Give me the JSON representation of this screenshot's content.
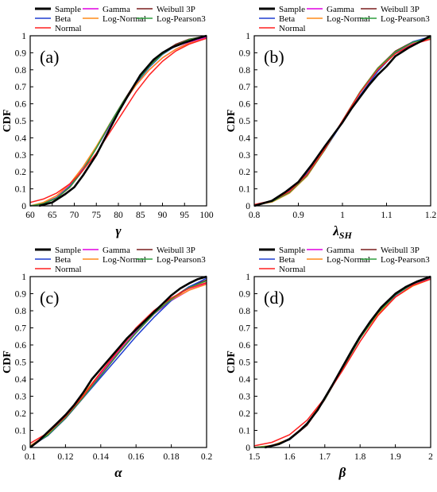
{
  "chart_data": [
    {
      "id": "a",
      "type": "line",
      "panel_label": "(a)",
      "xlabel": "γ",
      "xlabel_sub": "",
      "ylabel": "CDF",
      "xlim": [
        60,
        100
      ],
      "ylim": [
        0,
        1
      ],
      "xticks": [
        "60",
        "65",
        "70",
        "75",
        "80",
        "85",
        "90",
        "95",
        "100"
      ],
      "yticks": [
        "0",
        "0.1",
        "0.2",
        "0.3",
        "0.4",
        "0.5",
        "0.6",
        "0.7",
        "0.8",
        "0.9",
        "1"
      ],
      "grid": false,
      "legend_position": "top",
      "series": [
        {
          "name": "Sample",
          "color": "#000000",
          "x": [
            62,
            65,
            68,
            70,
            72,
            75,
            78,
            80,
            82,
            85,
            88,
            90,
            92,
            95,
            98,
            100
          ],
          "y": [
            0,
            0.02,
            0.07,
            0.11,
            0.18,
            0.3,
            0.45,
            0.55,
            0.64,
            0.77,
            0.86,
            0.9,
            0.93,
            0.96,
            0.985,
            1
          ]
        },
        {
          "name": "Gamma",
          "color": "#e000e0",
          "x": [
            60,
            63,
            66,
            69,
            72,
            75,
            78,
            81,
            84,
            87,
            90,
            93,
            96,
            100
          ],
          "y": [
            0,
            0.015,
            0.05,
            0.12,
            0.22,
            0.34,
            0.47,
            0.6,
            0.71,
            0.8,
            0.87,
            0.92,
            0.96,
            0.99
          ]
        },
        {
          "name": "Weibull 3P",
          "color": "#7a1f1f",
          "x": [
            60,
            63,
            66,
            69,
            72,
            75,
            78,
            81,
            84,
            87,
            90,
            93,
            96,
            100
          ],
          "y": [
            0,
            0.012,
            0.045,
            0.11,
            0.21,
            0.34,
            0.48,
            0.61,
            0.73,
            0.83,
            0.9,
            0.95,
            0.98,
            1
          ]
        },
        {
          "name": "Beta",
          "color": "#1f3fd0",
          "x": [
            60,
            63,
            66,
            69,
            72,
            75,
            78,
            81,
            84,
            87,
            90,
            93,
            96,
            100
          ],
          "y": [
            0,
            0.014,
            0.048,
            0.115,
            0.215,
            0.34,
            0.475,
            0.605,
            0.72,
            0.815,
            0.89,
            0.94,
            0.975,
            1
          ]
        },
        {
          "name": "Log-Normal",
          "color": "#ff8c1a",
          "x": [
            60,
            63,
            66,
            69,
            72,
            75,
            78,
            81,
            84,
            87,
            90,
            93,
            96,
            100
          ],
          "y": [
            0,
            0.02,
            0.06,
            0.13,
            0.23,
            0.35,
            0.48,
            0.6,
            0.71,
            0.8,
            0.87,
            0.92,
            0.955,
            0.985
          ]
        },
        {
          "name": "Log-Pearson3",
          "color": "#2e9e3e",
          "x": [
            60,
            63,
            66,
            69,
            72,
            75,
            78,
            81,
            84,
            87,
            90,
            93,
            96,
            100
          ],
          "y": [
            0,
            0.013,
            0.046,
            0.112,
            0.212,
            0.34,
            0.478,
            0.608,
            0.725,
            0.82,
            0.893,
            0.943,
            0.977,
            1
          ]
        },
        {
          "name": "Normal",
          "color": "#ff2020",
          "x": [
            60,
            63,
            66,
            69,
            72,
            75,
            78,
            81,
            84,
            87,
            90,
            93,
            96,
            100
          ],
          "y": [
            0.02,
            0.04,
            0.075,
            0.13,
            0.21,
            0.31,
            0.43,
            0.55,
            0.67,
            0.77,
            0.85,
            0.91,
            0.95,
            0.985
          ]
        }
      ]
    },
    {
      "id": "b",
      "type": "line",
      "panel_label": "(b)",
      "xlabel": "λ",
      "xlabel_sub": "SH",
      "ylabel": "CDF",
      "xlim": [
        0.8,
        1.2
      ],
      "ylim": [
        0,
        1
      ],
      "xticks": [
        "0.8",
        "0.9",
        "1",
        "1.1",
        "1.2"
      ],
      "yticks": [
        "0",
        "0.1",
        "0.2",
        "0.3",
        "0.4",
        "0.5",
        "0.6",
        "0.7",
        "0.8",
        "0.9",
        "1"
      ],
      "grid": false,
      "legend_position": "top",
      "series": [
        {
          "name": "Sample",
          "color": "#000000",
          "x": [
            0.8,
            0.84,
            0.87,
            0.9,
            0.93,
            0.96,
            0.98,
            1,
            1.02,
            1.04,
            1.06,
            1.08,
            1.1,
            1.12,
            1.15,
            1.18,
            1.2
          ],
          "y": [
            0,
            0.03,
            0.08,
            0.14,
            0.24,
            0.35,
            0.42,
            0.49,
            0.57,
            0.64,
            0.71,
            0.77,
            0.82,
            0.88,
            0.93,
            0.97,
            1
          ]
        },
        {
          "name": "Gamma",
          "color": "#e000e0",
          "x": [
            0.8,
            0.84,
            0.88,
            0.92,
            0.96,
            1,
            1.04,
            1.08,
            1.12,
            1.16,
            1.2
          ],
          "y": [
            0.005,
            0.025,
            0.08,
            0.18,
            0.33,
            0.5,
            0.67,
            0.8,
            0.9,
            0.955,
            0.985
          ]
        },
        {
          "name": "Weibull 3P",
          "color": "#7a1f1f",
          "x": [
            0.8,
            0.84,
            0.88,
            0.92,
            0.96,
            1,
            1.04,
            1.08,
            1.12,
            1.16,
            1.2
          ],
          "y": [
            0.005,
            0.024,
            0.078,
            0.178,
            0.33,
            0.5,
            0.67,
            0.81,
            0.91,
            0.965,
            0.99
          ]
        },
        {
          "name": "Beta",
          "color": "#1f3fd0",
          "x": [
            0.8,
            0.84,
            0.88,
            0.92,
            0.96,
            1,
            1.04,
            1.08,
            1.12,
            1.16,
            1.2
          ],
          "y": [
            0.005,
            0.03,
            0.09,
            0.19,
            0.33,
            0.49,
            0.65,
            0.79,
            0.9,
            0.965,
            0.995
          ]
        },
        {
          "name": "Log-Normal",
          "color": "#ff8c1a",
          "x": [
            0.8,
            0.84,
            0.88,
            0.92,
            0.96,
            1,
            1.04,
            1.08,
            1.12,
            1.16,
            1.2
          ],
          "y": [
            0.004,
            0.022,
            0.075,
            0.175,
            0.33,
            0.5,
            0.67,
            0.81,
            0.905,
            0.96,
            0.985
          ]
        },
        {
          "name": "Log-Pearson3",
          "color": "#2e9e3e",
          "x": [
            0.8,
            0.84,
            0.88,
            0.92,
            0.96,
            1,
            1.04,
            1.08,
            1.12,
            1.16,
            1.2
          ],
          "y": [
            0.005,
            0.025,
            0.079,
            0.179,
            0.331,
            0.5,
            0.669,
            0.808,
            0.905,
            0.962,
            0.988
          ]
        },
        {
          "name": "Normal",
          "color": "#ff2020",
          "x": [
            0.8,
            0.84,
            0.88,
            0.92,
            0.96,
            1,
            1.04,
            1.08,
            1.12,
            1.16,
            1.2
          ],
          "y": [
            0.008,
            0.03,
            0.085,
            0.185,
            0.335,
            0.5,
            0.665,
            0.8,
            0.895,
            0.95,
            0.98
          ]
        }
      ]
    },
    {
      "id": "c",
      "type": "line",
      "panel_label": "(c)",
      "xlabel": "α",
      "xlabel_sub": "",
      "ylabel": "CDF",
      "xlim": [
        0.1,
        0.2
      ],
      "ylim": [
        0,
        1
      ],
      "xticks": [
        "0.1",
        "0.12",
        "0.14",
        "0.16",
        "0.18",
        "0.2"
      ],
      "yticks": [
        "0",
        "0.1",
        "0.2",
        "0.3",
        "0.4",
        "0.5",
        "0.6",
        "0.7",
        "0.8",
        "0.9",
        "1"
      ],
      "grid": false,
      "legend_position": "top",
      "series": [
        {
          "name": "Sample",
          "color": "#000000",
          "x": [
            0.1,
            0.105,
            0.11,
            0.115,
            0.12,
            0.125,
            0.13,
            0.135,
            0.14,
            0.145,
            0.15,
            0.155,
            0.16,
            0.165,
            0.17,
            0.175,
            0.18,
            0.185,
            0.19,
            0.195,
            0.2
          ],
          "y": [
            0,
            0.04,
            0.09,
            0.14,
            0.19,
            0.25,
            0.32,
            0.4,
            0.46,
            0.52,
            0.58,
            0.64,
            0.69,
            0.74,
            0.79,
            0.84,
            0.89,
            0.93,
            0.96,
            0.985,
            1
          ]
        },
        {
          "name": "Gamma",
          "color": "#e000e0",
          "x": [
            0.1,
            0.11,
            0.12,
            0.13,
            0.14,
            0.15,
            0.16,
            0.17,
            0.18,
            0.19,
            0.2
          ],
          "y": [
            0.01,
            0.08,
            0.18,
            0.3,
            0.43,
            0.56,
            0.68,
            0.78,
            0.86,
            0.92,
            0.96
          ]
        },
        {
          "name": "Weibull 3P",
          "color": "#7a1f1f",
          "x": [
            0.1,
            0.11,
            0.12,
            0.13,
            0.14,
            0.15,
            0.16,
            0.17,
            0.18,
            0.19,
            0.2
          ],
          "y": [
            0.005,
            0.07,
            0.17,
            0.29,
            0.42,
            0.55,
            0.67,
            0.78,
            0.87,
            0.94,
            0.98
          ]
        },
        {
          "name": "Beta",
          "color": "#1f3fd0",
          "x": [
            0.1,
            0.11,
            0.12,
            0.13,
            0.14,
            0.15,
            0.16,
            0.17,
            0.18,
            0.19,
            0.2
          ],
          "y": [
            0.005,
            0.07,
            0.17,
            0.29,
            0.41,
            0.53,
            0.65,
            0.76,
            0.86,
            0.94,
            0.99
          ]
        },
        {
          "name": "Log-Normal",
          "color": "#ff8c1a",
          "x": [
            0.1,
            0.11,
            0.12,
            0.13,
            0.14,
            0.15,
            0.16,
            0.17,
            0.18,
            0.19,
            0.2
          ],
          "y": [
            0.01,
            0.08,
            0.185,
            0.31,
            0.44,
            0.57,
            0.69,
            0.79,
            0.865,
            0.92,
            0.955
          ]
        },
        {
          "name": "Log-Pearson3",
          "color": "#2e9e3e",
          "x": [
            0.1,
            0.11,
            0.12,
            0.13,
            0.14,
            0.15,
            0.16,
            0.17,
            0.18,
            0.19,
            0.2
          ],
          "y": [
            0.006,
            0.072,
            0.172,
            0.292,
            0.422,
            0.552,
            0.672,
            0.782,
            0.868,
            0.935,
            0.975
          ]
        },
        {
          "name": "Normal",
          "color": "#ff2020",
          "x": [
            0.1,
            0.11,
            0.12,
            0.13,
            0.14,
            0.15,
            0.16,
            0.17,
            0.18,
            0.19,
            0.2
          ],
          "y": [
            0.025,
            0.085,
            0.18,
            0.3,
            0.44,
            0.57,
            0.7,
            0.8,
            0.875,
            0.93,
            0.965
          ]
        }
      ]
    },
    {
      "id": "d",
      "type": "line",
      "panel_label": "(d)",
      "xlabel": "β",
      "xlabel_sub": "",
      "ylabel": "CDF",
      "xlim": [
        1.5,
        2
      ],
      "ylim": [
        0,
        1
      ],
      "xticks": [
        "1.5",
        "1.6",
        "1.7",
        "1.8",
        "1.9",
        "2"
      ],
      "yticks": [
        "0",
        "0.1",
        "0.2",
        "0.3",
        "0.4",
        "0.5",
        "0.6",
        "0.7",
        "0.8",
        "0.9",
        "1"
      ],
      "grid": false,
      "legend_position": "top",
      "series": [
        {
          "name": "Sample",
          "color": "#000000",
          "x": [
            1.53,
            1.57,
            1.6,
            1.63,
            1.65,
            1.68,
            1.7,
            1.72,
            1.75,
            1.78,
            1.8,
            1.83,
            1.86,
            1.9,
            1.93,
            1.96,
            2
          ],
          "y": [
            0,
            0.02,
            0.05,
            0.1,
            0.14,
            0.22,
            0.29,
            0.36,
            0.47,
            0.58,
            0.65,
            0.74,
            0.82,
            0.9,
            0.94,
            0.97,
            1
          ]
        },
        {
          "name": "Gamma",
          "color": "#e000e0",
          "x": [
            1.5,
            1.55,
            1.6,
            1.65,
            1.7,
            1.75,
            1.8,
            1.85,
            1.9,
            1.95,
            2
          ],
          "y": [
            0,
            0.01,
            0.05,
            0.14,
            0.29,
            0.47,
            0.64,
            0.78,
            0.88,
            0.95,
            0.99
          ]
        },
        {
          "name": "Weibull 3P",
          "color": "#7a1f1f",
          "x": [
            1.5,
            1.55,
            1.6,
            1.65,
            1.7,
            1.75,
            1.8,
            1.85,
            1.9,
            1.95,
            2
          ],
          "y": [
            0,
            0.01,
            0.045,
            0.13,
            0.28,
            0.46,
            0.64,
            0.79,
            0.9,
            0.96,
            0.995
          ]
        },
        {
          "name": "Beta",
          "color": "#1f3fd0",
          "x": [
            1.5,
            1.55,
            1.6,
            1.65,
            1.7,
            1.75,
            1.8,
            1.85,
            1.9,
            1.95,
            2
          ],
          "y": [
            0,
            0.008,
            0.045,
            0.135,
            0.285,
            0.465,
            0.64,
            0.785,
            0.89,
            0.96,
            1
          ]
        },
        {
          "name": "Log-Normal",
          "color": "#ff8c1a",
          "x": [
            1.5,
            1.55,
            1.6,
            1.65,
            1.7,
            1.75,
            1.8,
            1.85,
            1.9,
            1.95,
            2
          ],
          "y": [
            0,
            0.012,
            0.05,
            0.14,
            0.29,
            0.47,
            0.64,
            0.78,
            0.88,
            0.945,
            0.985
          ]
        },
        {
          "name": "Log-Pearson3",
          "color": "#2e9e3e",
          "x": [
            1.5,
            1.55,
            1.6,
            1.65,
            1.7,
            1.75,
            1.8,
            1.85,
            1.9,
            1.95,
            2
          ],
          "y": [
            0,
            0.009,
            0.046,
            0.135,
            0.283,
            0.463,
            0.64,
            0.787,
            0.893,
            0.958,
            0.995
          ]
        },
        {
          "name": "Normal",
          "color": "#ff2020",
          "x": [
            1.5,
            1.55,
            1.6,
            1.65,
            1.7,
            1.75,
            1.8,
            1.85,
            1.9,
            1.95,
            2
          ],
          "y": [
            0.01,
            0.03,
            0.075,
            0.16,
            0.29,
            0.45,
            0.62,
            0.77,
            0.88,
            0.95,
            0.985
          ]
        }
      ]
    }
  ]
}
